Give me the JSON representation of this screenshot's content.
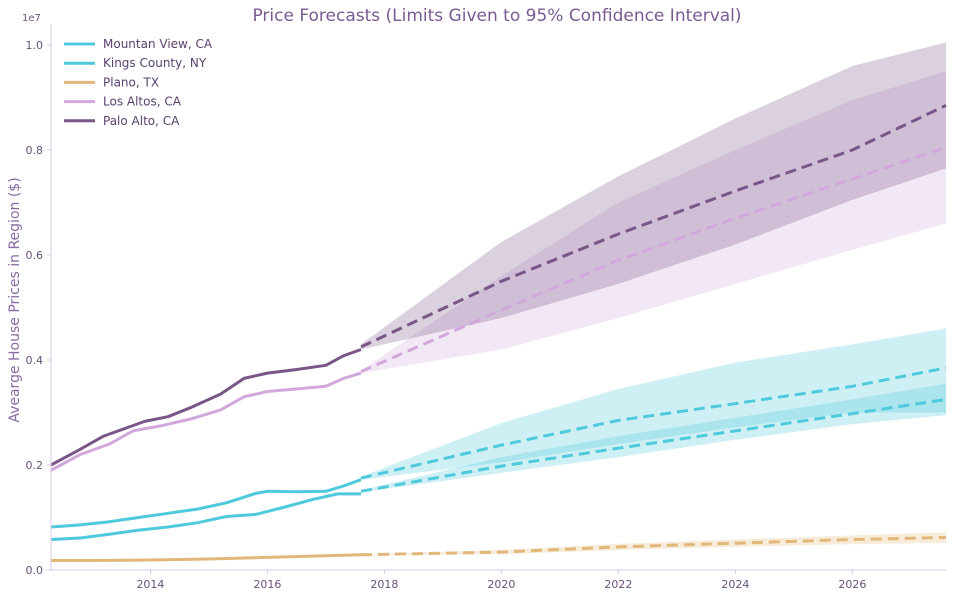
{
  "chart_data": {
    "type": "line",
    "title": "Price Forecasts (Limits Given to 95% Confidence Interval)",
    "xlabel": "",
    "ylabel": "Avearge House Prices in Region ($)",
    "y_exponent_label": "1e7",
    "xlim": [
      2012.3,
      2027.6
    ],
    "ylim": [
      0,
      1.04
    ],
    "x_ticks": [
      2014,
      2016,
      2018,
      2020,
      2022,
      2024,
      2026
    ],
    "y_ticks": [
      0.0,
      0.2,
      0.4,
      0.6,
      0.8,
      1.0
    ],
    "grid": false,
    "legend_position": "top-left",
    "series": [
      {
        "name": "Mountan View, CA",
        "color": "#4fc9dc",
        "history": [
          [
            2012.3,
            0.082
          ],
          [
            2012.8,
            0.086
          ],
          [
            2013.3,
            0.092
          ],
          [
            2013.8,
            0.1
          ],
          [
            2014.3,
            0.108
          ],
          [
            2014.8,
            0.116
          ],
          [
            2015.3,
            0.128
          ],
          [
            2015.8,
            0.146
          ],
          [
            2016.0,
            0.15
          ],
          [
            2016.5,
            0.149
          ],
          [
            2017.0,
            0.15
          ],
          [
            2017.3,
            0.16
          ],
          [
            2017.6,
            0.172
          ]
        ],
        "forecast": [
          [
            2017.6,
            0.175
          ],
          [
            2020.0,
            0.238
          ],
          [
            2022.0,
            0.285
          ],
          [
            2024.0,
            0.317
          ],
          [
            2026.0,
            0.35
          ],
          [
            2027.6,
            0.385
          ]
        ],
        "ci": {
          "lower": [
            [
              2017.6,
              0.172
            ],
            [
              2020.0,
              0.205
            ],
            [
              2022.0,
              0.24
            ],
            [
              2024.0,
              0.272
            ],
            [
              2026.0,
              0.3
            ],
            [
              2027.6,
              0.3
            ]
          ],
          "upper": [
            [
              2017.6,
              0.178
            ],
            [
              2020.0,
              0.28
            ],
            [
              2022.0,
              0.345
            ],
            [
              2024.0,
              0.395
            ],
            [
              2026.0,
              0.43
            ],
            [
              2027.6,
              0.46
            ]
          ]
        }
      },
      {
        "name": "Kings County, NY",
        "color": "#4fc9dc",
        "history": [
          [
            2012.3,
            0.058
          ],
          [
            2012.8,
            0.061
          ],
          [
            2013.3,
            0.068
          ],
          [
            2013.8,
            0.076
          ],
          [
            2014.3,
            0.082
          ],
          [
            2014.8,
            0.09
          ],
          [
            2015.3,
            0.102
          ],
          [
            2015.8,
            0.106
          ],
          [
            2016.3,
            0.12
          ],
          [
            2016.8,
            0.135
          ],
          [
            2017.2,
            0.145
          ],
          [
            2017.6,
            0.145
          ]
        ],
        "forecast": [
          [
            2017.6,
            0.15
          ],
          [
            2020.0,
            0.198
          ],
          [
            2022.0,
            0.232
          ],
          [
            2024.0,
            0.265
          ],
          [
            2026.0,
            0.298
          ],
          [
            2027.6,
            0.325
          ]
        ],
        "ci": {
          "lower": [
            [
              2017.6,
              0.148
            ],
            [
              2020.0,
              0.185
            ],
            [
              2022.0,
              0.215
            ],
            [
              2024.0,
              0.248
            ],
            [
              2026.0,
              0.278
            ],
            [
              2027.6,
              0.295
            ]
          ],
          "upper": [
            [
              2017.6,
              0.152
            ],
            [
              2020.0,
              0.215
            ],
            [
              2022.0,
              0.255
            ],
            [
              2024.0,
              0.29
            ],
            [
              2026.0,
              0.325
            ],
            [
              2027.6,
              0.355
            ]
          ]
        }
      },
      {
        "name": "Plano, TX",
        "color": "#e2b87a",
        "history": [
          [
            2012.3,
            0.018
          ],
          [
            2013.0,
            0.018
          ],
          [
            2014.0,
            0.019
          ],
          [
            2015.0,
            0.021
          ],
          [
            2016.0,
            0.024
          ],
          [
            2017.0,
            0.027
          ],
          [
            2017.6,
            0.029
          ]
        ],
        "forecast": [
          [
            2017.6,
            0.029
          ],
          [
            2020.0,
            0.034
          ],
          [
            2022.0,
            0.044
          ],
          [
            2024.0,
            0.051
          ],
          [
            2026.0,
            0.058
          ],
          [
            2027.6,
            0.062
          ]
        ],
        "ci": {
          "lower": [
            [
              2017.6,
              0.028
            ],
            [
              2020.0,
              0.03
            ],
            [
              2022.0,
              0.038
            ],
            [
              2024.0,
              0.044
            ],
            [
              2026.0,
              0.049
            ],
            [
              2027.6,
              0.052
            ]
          ],
          "upper": [
            [
              2017.6,
              0.03
            ],
            [
              2020.0,
              0.038
            ],
            [
              2022.0,
              0.05
            ],
            [
              2024.0,
              0.058
            ],
            [
              2026.0,
              0.066
            ],
            [
              2027.6,
              0.072
            ]
          ]
        }
      },
      {
        "name": "Los Altos, CA",
        "color": "#d2a8dc",
        "history": [
          [
            2012.3,
            0.19
          ],
          [
            2012.8,
            0.22
          ],
          [
            2013.3,
            0.24
          ],
          [
            2013.7,
            0.265
          ],
          [
            2014.2,
            0.275
          ],
          [
            2014.7,
            0.288
          ],
          [
            2015.2,
            0.305
          ],
          [
            2015.6,
            0.33
          ],
          [
            2016.0,
            0.34
          ],
          [
            2016.5,
            0.345
          ],
          [
            2017.0,
            0.35
          ],
          [
            2017.3,
            0.365
          ],
          [
            2017.6,
            0.375
          ]
        ],
        "forecast": [
          [
            2017.6,
            0.378
          ],
          [
            2020.0,
            0.495
          ],
          [
            2022.0,
            0.59
          ],
          [
            2024.0,
            0.67
          ],
          [
            2026.0,
            0.745
          ],
          [
            2027.6,
            0.805
          ]
        ],
        "ci": {
          "lower": [
            [
              2017.6,
              0.375
            ],
            [
              2020.0,
              0.42
            ],
            [
              2022.0,
              0.48
            ],
            [
              2024.0,
              0.545
            ],
            [
              2026.0,
              0.61
            ],
            [
              2027.6,
              0.66
            ]
          ],
          "upper": [
            [
              2017.6,
              0.38
            ],
            [
              2020.0,
              0.56
            ],
            [
              2022.0,
              0.7
            ],
            [
              2024.0,
              0.8
            ],
            [
              2026.0,
              0.895
            ],
            [
              2027.6,
              0.95
            ]
          ]
        }
      },
      {
        "name": "Palo Alto, CA",
        "color": "#7a5688",
        "history": [
          [
            2012.3,
            0.2
          ],
          [
            2012.8,
            0.23
          ],
          [
            2013.2,
            0.255
          ],
          [
            2013.7,
            0.275
          ],
          [
            2013.9,
            0.283
          ],
          [
            2014.3,
            0.292
          ],
          [
            2014.7,
            0.31
          ],
          [
            2015.2,
            0.335
          ],
          [
            2015.6,
            0.365
          ],
          [
            2016.0,
            0.375
          ],
          [
            2016.5,
            0.382
          ],
          [
            2017.0,
            0.39
          ],
          [
            2017.3,
            0.408
          ],
          [
            2017.6,
            0.42
          ]
        ],
        "forecast": [
          [
            2017.6,
            0.425
          ],
          [
            2020.0,
            0.55
          ],
          [
            2022.0,
            0.64
          ],
          [
            2024.0,
            0.722
          ],
          [
            2026.0,
            0.8
          ],
          [
            2027.6,
            0.885
          ]
        ],
        "ci": {
          "lower": [
            [
              2017.6,
              0.42
            ],
            [
              2020.0,
              0.48
            ],
            [
              2022.0,
              0.545
            ],
            [
              2024.0,
              0.62
            ],
            [
              2026.0,
              0.705
            ],
            [
              2027.6,
              0.765
            ]
          ],
          "upper": [
            [
              2017.6,
              0.43
            ],
            [
              2020.0,
              0.625
            ],
            [
              2022.0,
              0.75
            ],
            [
              2024.0,
              0.86
            ],
            [
              2026.0,
              0.96
            ],
            [
              2027.6,
              1.005
            ]
          ]
        }
      }
    ]
  }
}
